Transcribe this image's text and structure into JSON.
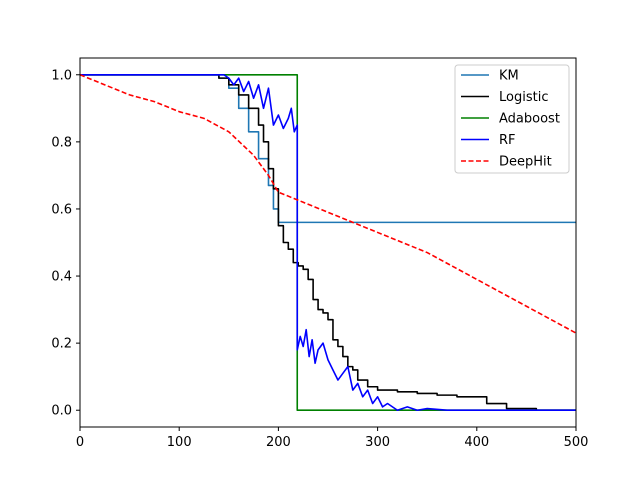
{
  "chart_data": {
    "type": "line",
    "title": "",
    "xlabel": "",
    "ylabel": "",
    "xlim": [
      0,
      500
    ],
    "ylim": [
      -0.05,
      1.05
    ],
    "xticks": [
      0,
      100,
      200,
      300,
      400,
      500
    ],
    "yticks": [
      0.0,
      0.2,
      0.4,
      0.6,
      0.8,
      1.0
    ],
    "grid": false,
    "legend_position": "top-right",
    "series": [
      {
        "name": "KM",
        "color": "#1f77b4",
        "style": "step",
        "x": [
          0,
          140,
          150,
          160,
          170,
          180,
          190,
          195,
          200,
          500
        ],
        "y": [
          1.0,
          0.99,
          0.96,
          0.9,
          0.83,
          0.75,
          0.67,
          0.6,
          0.56,
          0.56
        ]
      },
      {
        "name": "Logistic",
        "color": "#000000",
        "style": "step",
        "x": [
          0,
          140,
          150,
          160,
          170,
          180,
          185,
          190,
          195,
          200,
          205,
          210,
          215,
          220,
          225,
          230,
          235,
          240,
          245,
          250,
          255,
          260,
          265,
          270,
          275,
          280,
          290,
          300,
          320,
          340,
          360,
          380,
          400,
          410,
          430,
          460,
          500
        ],
        "y": [
          1.0,
          0.99,
          0.97,
          0.94,
          0.9,
          0.85,
          0.8,
          0.72,
          0.66,
          0.55,
          0.5,
          0.48,
          0.44,
          0.43,
          0.42,
          0.39,
          0.33,
          0.3,
          0.29,
          0.27,
          0.21,
          0.19,
          0.16,
          0.13,
          0.12,
          0.09,
          0.07,
          0.06,
          0.055,
          0.05,
          0.045,
          0.04,
          0.04,
          0.02,
          0.005,
          0.0,
          0.0
        ]
      },
      {
        "name": "Adaboost",
        "color": "#008000",
        "style": "step",
        "x": [
          0,
          219,
          219,
          500
        ],
        "y": [
          1.0,
          1.0,
          0.0,
          0.0
        ]
      },
      {
        "name": "RF",
        "color": "#0000ff",
        "style": "line",
        "x": [
          0,
          140,
          145,
          150,
          155,
          160,
          165,
          170,
          175,
          180,
          185,
          190,
          195,
          200,
          205,
          210,
          213,
          216,
          219,
          219,
          222,
          225,
          228,
          231,
          234,
          237,
          240,
          245,
          250,
          255,
          260,
          265,
          270,
          275,
          280,
          285,
          290,
          295,
          300,
          305,
          310,
          320,
          330,
          340,
          350,
          370,
          400,
          500
        ],
        "y": [
          1.0,
          1.0,
          1.0,
          0.99,
          0.97,
          0.99,
          0.95,
          0.98,
          0.93,
          0.97,
          0.9,
          0.96,
          0.85,
          0.88,
          0.84,
          0.87,
          0.9,
          0.83,
          0.85,
          0.18,
          0.22,
          0.19,
          0.24,
          0.16,
          0.21,
          0.14,
          0.18,
          0.2,
          0.15,
          0.12,
          0.09,
          0.11,
          0.13,
          0.06,
          0.08,
          0.04,
          0.06,
          0.02,
          0.04,
          0.01,
          0.02,
          0.0,
          0.01,
          0.0,
          0.005,
          0.0,
          0.0,
          0.0
        ]
      },
      {
        "name": "DeepHit",
        "color": "#ff0000",
        "style": "dashed",
        "x": [
          0,
          25,
          50,
          75,
          100,
          125,
          150,
          175,
          190,
          200,
          225,
          250,
          275,
          300,
          325,
          350,
          375,
          400,
          425,
          450,
          475,
          500
        ],
        "y": [
          1.0,
          0.97,
          0.94,
          0.92,
          0.89,
          0.87,
          0.83,
          0.76,
          0.7,
          0.65,
          0.62,
          0.59,
          0.56,
          0.53,
          0.5,
          0.47,
          0.43,
          0.39,
          0.35,
          0.31,
          0.27,
          0.23
        ]
      }
    ]
  }
}
